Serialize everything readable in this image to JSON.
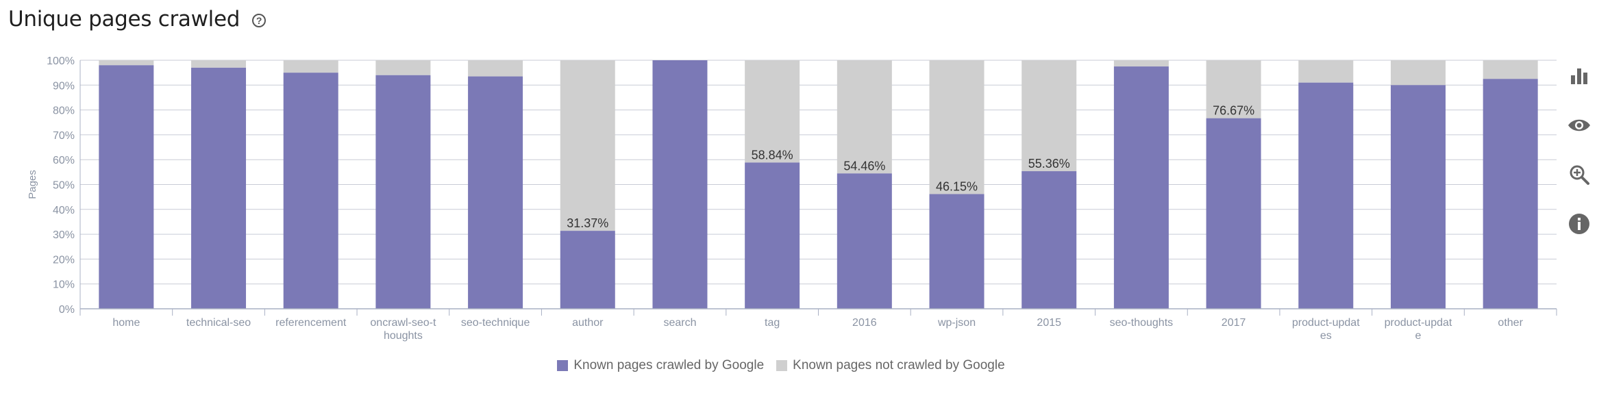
{
  "header": {
    "title": "Unique pages crawled"
  },
  "icons": {
    "help": "help-circle-icon",
    "bar_chart": "bar-chart-icon",
    "eye": "eye-icon",
    "zoom": "zoom-in-icon",
    "info": "info-icon"
  },
  "colors": {
    "crawled": "#7b79b6",
    "not_crawled": "#cfcfcf",
    "axis_text": "#8a93a3",
    "grid": "#c8cbd6"
  },
  "chart_data": {
    "type": "bar",
    "stacked": true,
    "percent": true,
    "ylabel": "Pages",
    "ylim": [
      0,
      100
    ],
    "yticks": [
      "0%",
      "10%",
      "20%",
      "30%",
      "40%",
      "50%",
      "60%",
      "70%",
      "80%",
      "90%",
      "100%"
    ],
    "categories": [
      "home",
      "technical-seo",
      "referencement",
      "oncrawl-seo-t houghts",
      "seo-technique",
      "author",
      "search",
      "tag",
      "2016",
      "wp-json",
      "2015",
      "seo-thoughts",
      "2017",
      "product-updat es",
      "product-updat e",
      "other"
    ],
    "series": [
      {
        "name": "Known pages crawled by Google",
        "values": [
          98,
          97,
          95,
          94,
          93.5,
          31.37,
          100,
          58.84,
          54.46,
          46.15,
          55.36,
          97.5,
          76.67,
          91,
          90,
          92.5
        ]
      },
      {
        "name": "Known pages not crawled by Google",
        "values": [
          2,
          3,
          5,
          6,
          6.5,
          68.63,
          0,
          41.16,
          45.54,
          53.85,
          44.64,
          2.5,
          23.33,
          9,
          10,
          7.5
        ]
      }
    ],
    "data_labels": [
      "",
      "",
      "",
      "",
      "",
      "31.37%",
      "",
      "58.84%",
      "54.46%",
      "46.15%",
      "55.36%",
      "",
      "76.67%",
      "",
      "",
      ""
    ],
    "grid": true,
    "legend_position": "bottom-center"
  }
}
